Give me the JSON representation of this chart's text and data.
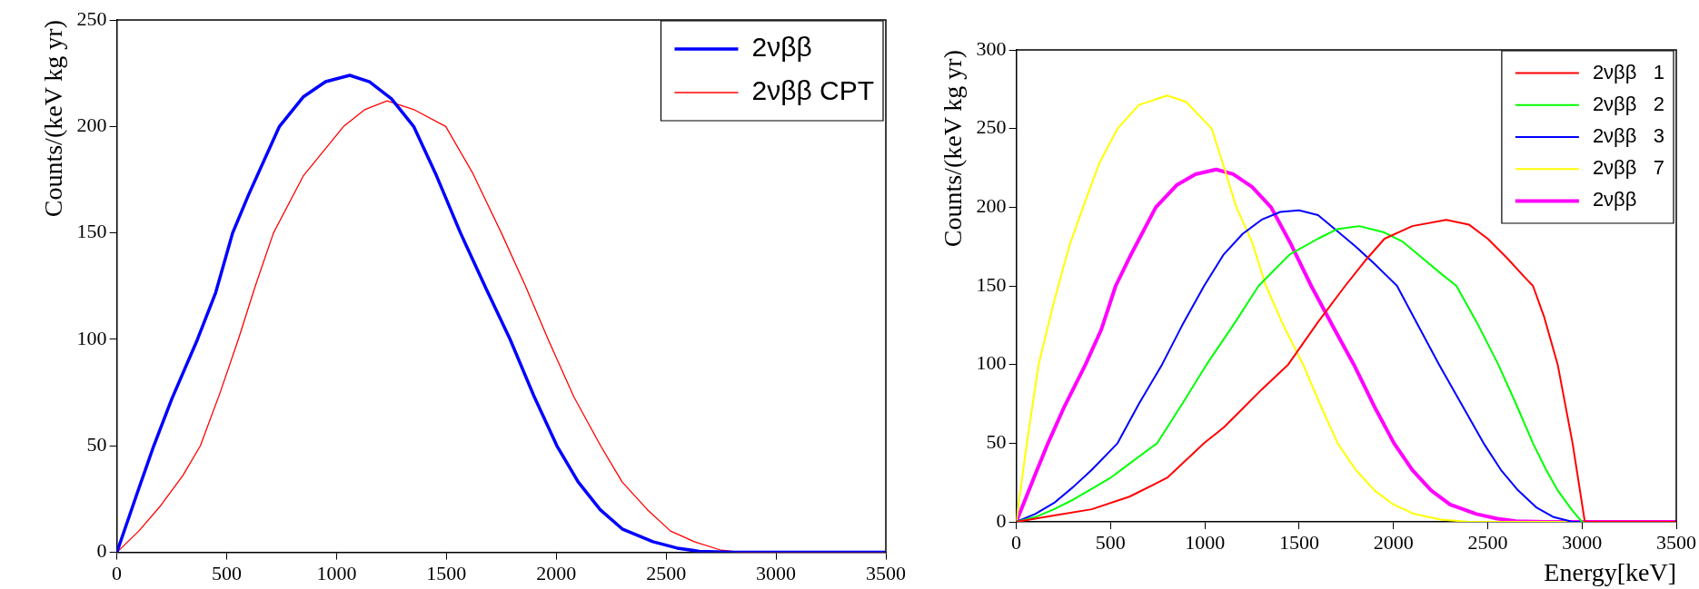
{
  "chart_data": [
    {
      "type": "line",
      "ylabel": "Counts/(keV kg yr)",
      "xlim": [
        0,
        3500
      ],
      "xticks": [
        0,
        500,
        1000,
        1500,
        2000,
        2500,
        3000,
        3500
      ],
      "ylim": [
        0,
        250
      ],
      "yticks": [
        0,
        50,
        100,
        150,
        200,
        250
      ],
      "grid": false,
      "legend": "top right",
      "marker": "none",
      "line_style": "solid",
      "series": [
        {
          "name": "2νββ",
          "color": "#0000ff",
          "x": [
            0,
            100,
            168,
            250,
            367,
            450,
            527,
            600,
            740,
            850,
            950,
            1060,
            1150,
            1250,
            1351,
            1450,
            1564,
            1680,
            1790,
            1900,
            2003,
            2100,
            2200,
            2300,
            2440,
            2550,
            2650,
            2800,
            3500
          ],
          "values": [
            0,
            30,
            50,
            72,
            100,
            122,
            150,
            168,
            200,
            214,
            221,
            224,
            221,
            213,
            200,
            178,
            150,
            124,
            100,
            73,
            50,
            33,
            20,
            11,
            5,
            2,
            0.5,
            0,
            0
          ]
        },
        {
          "name": "2νββ CPT",
          "color": "#ff0000",
          "x": [
            0,
            100,
            200,
            300,
            380,
            470,
            553,
            630,
            713,
            850,
            1032,
            1130,
            1230,
            1350,
            1497,
            1620,
            1750,
            1860,
            1963,
            2080,
            2202,
            2300,
            2415,
            2520,
            2628,
            2750,
            2850,
            3500
          ],
          "values": [
            0,
            10,
            22,
            36,
            50,
            75,
            100,
            125,
            150,
            177,
            200,
            208,
            212,
            208,
            200,
            178,
            150,
            125,
            100,
            73,
            50,
            33,
            20,
            10,
            5,
            1,
            0,
            0
          ]
        }
      ]
    },
    {
      "type": "line",
      "xlabel": "Energy[keV]",
      "ylabel": "Counts/(keV kg yr)",
      "xlim": [
        0,
        3500
      ],
      "xticks": [
        0,
        500,
        1000,
        1500,
        2000,
        2500,
        3000,
        3500
      ],
      "ylim": [
        0,
        300
      ],
      "yticks": [
        0,
        50,
        100,
        150,
        200,
        250,
        300
      ],
      "grid": false,
      "legend": "top right",
      "marker": "none",
      "line_style": "solid",
      "series": [
        {
          "name": "2νββ   1",
          "color": "#ff0000",
          "x": [
            0,
            200,
            400,
            600,
            800,
            996,
            1100,
            1200,
            1300,
            1442,
            1600,
            1744,
            1850,
            1953,
            2100,
            2280,
            2400,
            2500,
            2600,
            2700,
            2740,
            2800,
            2871,
            2950,
            3015,
            3500
          ],
          "values": [
            0,
            4,
            8,
            16,
            28,
            50,
            60,
            72,
            84,
            100,
            127,
            150,
            166,
            180,
            188,
            192,
            189,
            180,
            168,
            155,
            150,
            130,
            100,
            50,
            0,
            0
          ]
        },
        {
          "name": "2νββ   2",
          "color": "#00ff00",
          "x": [
            0,
            100,
            200,
            300,
            400,
            500,
            600,
            747,
            880,
            1009,
            1150,
            1285,
            1450,
            1600,
            1700,
            1820,
            1950,
            2050,
            2150,
            2250,
            2334,
            2450,
            2556,
            2650,
            2740,
            2810,
            2871,
            2950,
            3000,
            3500
          ],
          "values": [
            0,
            3,
            8,
            14,
            21,
            28,
            37,
            50,
            75,
            100,
            125,
            150,
            170,
            180,
            186,
            188,
            184,
            178,
            168,
            158,
            150,
            125,
            100,
            75,
            50,
            33,
            20,
            7,
            0,
            0
          ]
        },
        {
          "name": "2νββ   3",
          "color": "#0000ff",
          "x": [
            0,
            100,
            200,
            300,
            400,
            537,
            650,
            773,
            880,
            996,
            1100,
            1200,
            1300,
            1400,
            1500,
            1600,
            1700,
            1800,
            1900,
            2019,
            2130,
            2242,
            2360,
            2478,
            2570,
            2661,
            2760,
            2850,
            2950,
            3500
          ],
          "values": [
            0,
            5,
            12,
            22,
            33,
            50,
            75,
            100,
            125,
            150,
            170,
            183,
            192,
            197,
            198,
            195,
            185,
            175,
            164,
            150,
            125,
            100,
            75,
            50,
            33,
            20,
            9,
            3,
            0,
            0
          ]
        },
        {
          "name": "2νββ   7",
          "color": "#ffff00",
          "x": [
            0,
            50,
            118,
            200,
            280,
            354,
            440,
            537,
            650,
            800,
            900,
            1036,
            1100,
            1167,
            1250,
            1324,
            1420,
            1521,
            1610,
            1704,
            1800,
            1900,
            2000,
            2110,
            2250,
            2400,
            3500
          ],
          "values": [
            0,
            45,
            100,
            140,
            175,
            200,
            228,
            250,
            265,
            271,
            267,
            250,
            226,
            200,
            178,
            150,
            124,
            100,
            75,
            50,
            33,
            20,
            11,
            5,
            1.5,
            0,
            0
          ]
        },
        {
          "name": "2νββ",
          "color": "#ff00ff",
          "x": [
            0,
            100,
            168,
            250,
            367,
            450,
            527,
            600,
            740,
            850,
            950,
            1060,
            1150,
            1250,
            1351,
            1450,
            1564,
            1680,
            1790,
            1900,
            2003,
            2100,
            2200,
            2300,
            2440,
            2550,
            2650,
            2800,
            3500
          ],
          "values": [
            0,
            30,
            50,
            72,
            100,
            122,
            150,
            168,
            200,
            214,
            221,
            224,
            221,
            213,
            200,
            178,
            150,
            124,
            100,
            73,
            50,
            33,
            20,
            11,
            5,
            2,
            0.5,
            0,
            0
          ]
        }
      ]
    }
  ]
}
